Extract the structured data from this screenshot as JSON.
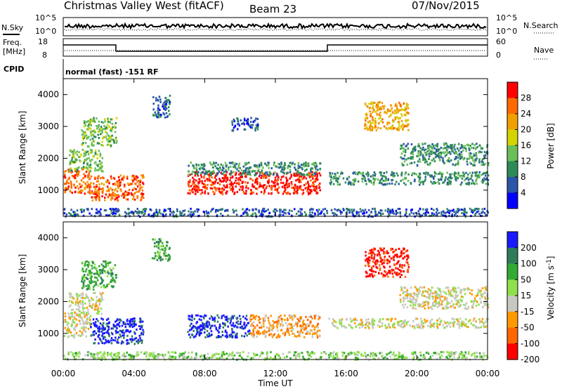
{
  "header": {
    "station": "Christmas Valley West (fitACF)",
    "beam": "Beam 23",
    "date": "07/Nov/2015"
  },
  "strips": {
    "nsky_label": "N.Sky",
    "nsky_ticks": [
      "10^5",
      "10^0"
    ],
    "nsky_right_ticks": [
      "10^5",
      "10^0"
    ],
    "nsearch_label": "N.Search",
    "freq_label_1": "Freq.",
    "freq_label_2": "[MHz]",
    "freq_ticks": [
      "18",
      "8"
    ],
    "nave_ticks": [
      "60",
      "0"
    ],
    "nave_label": "Nave",
    "cpid_label": "CPID",
    "cpid_text": "normal (fast) -151 RF"
  },
  "colors": {
    "power": [
      "#0000ff",
      "#2a55a8",
      "#2e8b57",
      "#6bbf59",
      "#d4d400",
      "#f0a000",
      "#ff6a00",
      "#ff0000"
    ],
    "velocity": [
      "#1a1aff",
      "#2e7d5a",
      "#33aa33",
      "#90e04d",
      "#c8c8c0",
      "#ff9900",
      "#ff6600",
      "#ff0000"
    ]
  },
  "chart_data": [
    {
      "type": "heatmap",
      "title": "Power",
      "ylabel": "Slant Range [km]",
      "ylim": [
        180,
        4500
      ],
      "yticks": [
        "1000",
        "2000",
        "3000",
        "4000"
      ],
      "xticks": [
        "00:00",
        "04:00",
        "08:00",
        "12:00",
        "16:00",
        "20:00",
        "00:00"
      ],
      "colorbar_label": "Power [dB]",
      "colorbar_ticks": [
        "4",
        "8",
        "12",
        "16",
        "20",
        "24",
        "28"
      ],
      "regions": [
        {
          "t0": 0.0,
          "t1": 1.5,
          "r0": 900,
          "r1": 1700,
          "level": 6
        },
        {
          "t0": 0.3,
          "t1": 2.2,
          "r0": 1600,
          "r1": 2300,
          "level": 3
        },
        {
          "t0": 1.0,
          "t1": 3.0,
          "r0": 2400,
          "r1": 3300,
          "level": 3
        },
        {
          "t0": 1.5,
          "t1": 4.5,
          "r0": 700,
          "r1": 1500,
          "level": 6
        },
        {
          "t0": 7.0,
          "t1": 14.5,
          "r0": 900,
          "r1": 1600,
          "level": 7
        },
        {
          "t0": 7.0,
          "t1": 14.5,
          "r0": 1500,
          "r1": 1900,
          "level": 2
        },
        {
          "t0": 15.0,
          "t1": 24.0,
          "r0": 1200,
          "r1": 1600,
          "level": 2
        },
        {
          "t0": 17.0,
          "t1": 19.5,
          "r0": 2900,
          "r1": 3800,
          "level": 5
        },
        {
          "t0": 19.0,
          "t1": 24.0,
          "r0": 1800,
          "r1": 2500,
          "level": 2
        },
        {
          "t0": 5.0,
          "t1": 6.0,
          "r0": 3300,
          "r1": 4000,
          "level": 1
        },
        {
          "t0": 9.5,
          "t1": 11.0,
          "r0": 2900,
          "r1": 3300,
          "level": 1
        },
        {
          "t0": 0.0,
          "t1": 24.0,
          "r0": 200,
          "r1": 450,
          "level": 1
        }
      ]
    },
    {
      "type": "heatmap",
      "title": "Velocity",
      "ylabel": "Slant Range [km]",
      "ylim": [
        180,
        4500
      ],
      "yticks": [
        "1000",
        "2000",
        "3000",
        "4000"
      ],
      "xticks": [
        "00:00",
        "04:00",
        "08:00",
        "12:00",
        "16:00",
        "20:00",
        "00:00"
      ],
      "xlabel": "Time UT",
      "colorbar_label": "Velocity [m s",
      "colorbar_label_sup": "-1",
      "colorbar_label_end": "]",
      "colorbar_ticks": [
        "200",
        "100",
        "50",
        "15",
        "-15",
        "-50",
        "-100",
        "-200"
      ],
      "regions": [
        {
          "t0": 0.0,
          "t1": 1.5,
          "r0": 900,
          "r1": 1700,
          "level": 4
        },
        {
          "t0": 0.3,
          "t1": 2.2,
          "r0": 1600,
          "r1": 2300,
          "level": 4
        },
        {
          "t0": 1.5,
          "t1": 4.5,
          "r0": 700,
          "r1": 1500,
          "level": 0
        },
        {
          "t0": 1.0,
          "t1": 3.0,
          "r0": 2400,
          "r1": 3300,
          "level": 2
        },
        {
          "t0": 7.0,
          "t1": 10.5,
          "r0": 900,
          "r1": 1600,
          "level": 0
        },
        {
          "t0": 10.5,
          "t1": 14.5,
          "r0": 900,
          "r1": 1600,
          "level": 5
        },
        {
          "t0": 15.0,
          "t1": 24.0,
          "r0": 1200,
          "r1": 1500,
          "level": 4
        },
        {
          "t0": 17.0,
          "t1": 19.5,
          "r0": 2800,
          "r1": 3700,
          "level": 7
        },
        {
          "t0": 19.0,
          "t1": 24.0,
          "r0": 1800,
          "r1": 2500,
          "level": 4
        },
        {
          "t0": 5.0,
          "t1": 6.0,
          "r0": 3300,
          "r1": 4000,
          "level": 2
        },
        {
          "t0": 0.0,
          "t1": 24.0,
          "r0": 200,
          "r1": 450,
          "level": 3
        }
      ]
    }
  ]
}
